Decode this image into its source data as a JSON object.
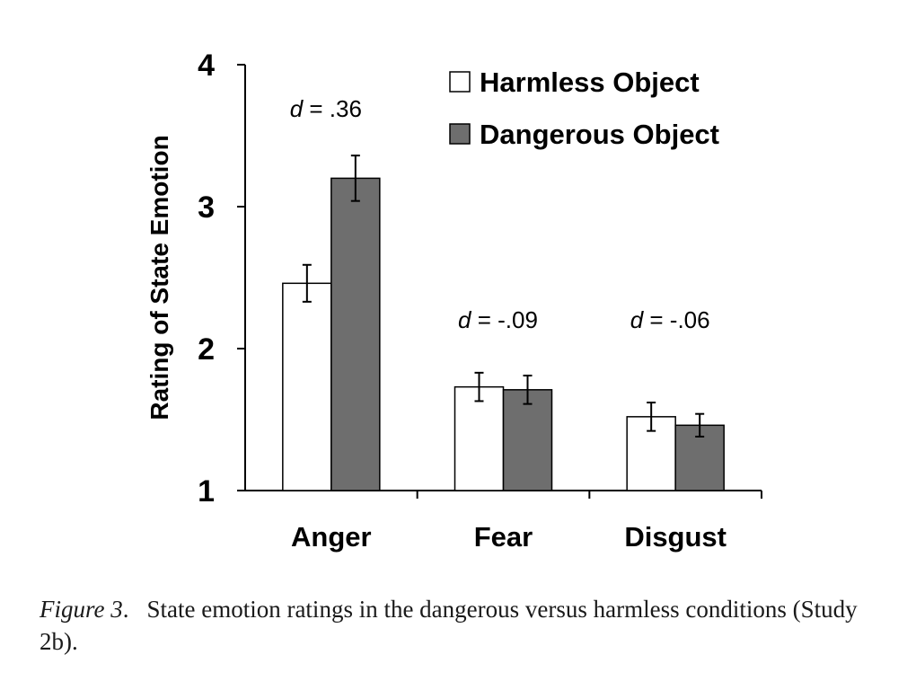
{
  "chart_data": {
    "type": "bar",
    "ylabel": "Rating of State Emotion",
    "xlabel": "",
    "ylim": [
      1,
      4
    ],
    "yticks": [
      "1",
      "2",
      "3",
      "4"
    ],
    "categories": [
      "Anger",
      "Fear",
      "Disgust"
    ],
    "series": [
      {
        "name": "Harmless Object",
        "color": "#ffffff",
        "values": [
          2.46,
          1.73,
          1.52
        ],
        "errors": [
          0.13,
          0.1,
          0.1
        ]
      },
      {
        "name": "Dangerous Object",
        "color": "#6e6e6e",
        "values": [
          3.2,
          1.71,
          1.46
        ],
        "errors": [
          0.16,
          0.1,
          0.08
        ]
      }
    ],
    "annotations": [
      {
        "category": "Anger",
        "label": "d",
        "text": " = .36"
      },
      {
        "category": "Fear",
        "label": "d",
        "text": " = -.09"
      },
      {
        "category": "Disgust",
        "label": "d",
        "text": " = -.06"
      }
    ],
    "legend_position": "top-right",
    "grid": false
  },
  "caption": {
    "label": "Figure 3",
    "punct": ".",
    "text": "State emotion ratings in the dangerous versus harmless conditions (Study 2b)."
  }
}
